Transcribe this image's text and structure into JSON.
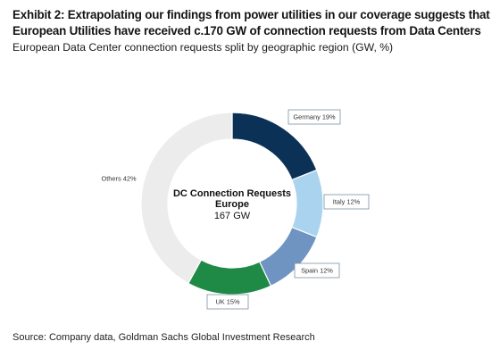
{
  "header": {
    "title": "Exhibit 2: Extrapolating our findings from power utilities in our coverage suggests that European Utilities have received c.170 GW of connection requests from Data Centers",
    "subtitle": "European Data Center connection requests split by geographic region (GW, %)"
  },
  "footer": {
    "source": "Source: Company data, Goldman Sachs Global Investment Research"
  },
  "chart_data": {
    "type": "pie",
    "donut": true,
    "center_label": {
      "line1": "DC Connection Requests",
      "line2": "Europe",
      "line3": "167 GW"
    },
    "slices": [
      {
        "label": "Germany 19%",
        "category": "Germany",
        "value": 19,
        "color": "#0b3256"
      },
      {
        "label": "Italy 12%",
        "category": "Italy",
        "value": 12,
        "color": "#a9d3ee"
      },
      {
        "label": "Spain 12%",
        "category": "Spain",
        "value": 12,
        "color": "#6f94c1"
      },
      {
        "label": "UK 15%",
        "category": "UK",
        "value": 15,
        "color": "#1e8a46"
      },
      {
        "label": "Others 42%",
        "category": "Others",
        "value": 42,
        "color": "#ececec"
      }
    ],
    "start": "12 o'clock",
    "direction": "clockwise"
  }
}
